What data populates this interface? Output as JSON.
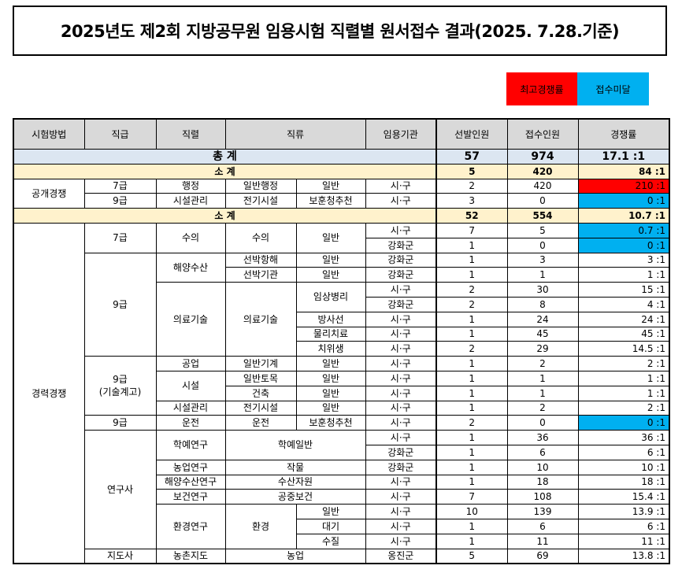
{
  "title": "2025년도 제2회 지방공무원 임용시험 직렬별 원서접수 결과(2025. 7.28.기준)",
  "legend": {
    "highest": "최고경쟁률",
    "under": "접수미달"
  },
  "headers": [
    "시험방법",
    "직급",
    "직렬",
    "직류",
    "임용기관",
    "선발인원",
    "접수인원",
    "경쟁률"
  ],
  "total": {
    "label": "총 계",
    "sel": "57",
    "app": "974",
    "rate": "17.1 :1"
  },
  "open": {
    "method": "공개경쟁",
    "subtotal": {
      "label": "소 계",
      "sel": "5",
      "app": "420",
      "rate": "84 :1"
    },
    "rows": [
      {
        "grade": "7급",
        "series": "행정",
        "c1": "일반행정",
        "c2": "일반",
        "agency": "시·구",
        "sel": "2",
        "app": "420",
        "rate": "210 :1"
      },
      {
        "grade": "9급",
        "series": "시설관리",
        "c1": "전기시설",
        "c2": "보훈청추천",
        "agency": "시·구",
        "sel": "3",
        "app": "0",
        "rate": "0 :1"
      }
    ]
  },
  "career": {
    "method": "경력경쟁",
    "subtotal": {
      "label": "소 계",
      "sel": "52",
      "app": "554",
      "rate": "10.7 :1"
    },
    "labels": {
      "g7": "7급",
      "g9": "9급",
      "g9tech1": "9급",
      "g9tech2": "(기술계고)",
      "g9b": "9급",
      "researcher": "연구사",
      "advisor": "지도사",
      "fishery": "해양수산",
      "medtech": "의료기술",
      "medtech_c": "의료기술",
      "clinical": "임상병리",
      "facility": "시설",
      "edu": "학예연구",
      "edu_c": "학예일반",
      "env": "환경연구",
      "env_c": "환경",
      "vet": "수의",
      "vet_c": "수의"
    },
    "rows": [
      {
        "c2": "일반",
        "agency": "시·구",
        "sel": "7",
        "app": "5",
        "rate": "0.7 :1"
      },
      {
        "agency": "강화군",
        "sel": "1",
        "app": "0",
        "rate": "0 :1"
      },
      {
        "c1": "선박항해",
        "c2": "일반",
        "agency": "강화군",
        "sel": "1",
        "app": "3",
        "rate": "3 :1"
      },
      {
        "c1": "선박기관",
        "c2": "일반",
        "agency": "강화군",
        "sel": "1",
        "app": "1",
        "rate": "1 :1"
      },
      {
        "agency": "시·구",
        "sel": "2",
        "app": "30",
        "rate": "15 :1"
      },
      {
        "agency": "강화군",
        "sel": "2",
        "app": "8",
        "rate": "4 :1"
      },
      {
        "c2": "방사선",
        "agency": "시·구",
        "sel": "1",
        "app": "24",
        "rate": "24 :1"
      },
      {
        "c2": "물리치료",
        "agency": "시·구",
        "sel": "1",
        "app": "45",
        "rate": "45 :1"
      },
      {
        "c2": "치위생",
        "agency": "시·구",
        "sel": "2",
        "app": "29",
        "rate": "14.5 :1"
      },
      {
        "series": "공업",
        "c1": "일반기계",
        "c2": "일반",
        "agency": "시·구",
        "sel": "1",
        "app": "2",
        "rate": "2 :1"
      },
      {
        "c1": "일반토목",
        "c2": "일반",
        "agency": "시·구",
        "sel": "1",
        "app": "1",
        "rate": "1 :1"
      },
      {
        "c1": "건축",
        "c2": "일반",
        "agency": "시·구",
        "sel": "1",
        "app": "1",
        "rate": "1 :1"
      },
      {
        "series": "시설관리",
        "c1": "전기시설",
        "c2": "일반",
        "agency": "시·구",
        "sel": "1",
        "app": "2",
        "rate": "2 :1"
      },
      {
        "series": "운전",
        "c1": "운전",
        "c2": "보훈청추천",
        "agency": "시·구",
        "sel": "2",
        "app": "0",
        "rate": "0 :1"
      },
      {
        "agency": "시·구",
        "sel": "1",
        "app": "36",
        "rate": "36 :1"
      },
      {
        "agency": "강화군",
        "sel": "1",
        "app": "6",
        "rate": "6 :1"
      },
      {
        "series": "농업연구",
        "c": "작물",
        "agency": "강화군",
        "sel": "1",
        "app": "10",
        "rate": "10 :1"
      },
      {
        "series": "해양수산연구",
        "c": "수산자원",
        "agency": "시·구",
        "sel": "1",
        "app": "18",
        "rate": "18 :1"
      },
      {
        "series": "보건연구",
        "c": "공중보건",
        "agency": "시·구",
        "sel": "7",
        "app": "108",
        "rate": "15.4 :1"
      },
      {
        "c2": "일반",
        "agency": "시·구",
        "sel": "10",
        "app": "139",
        "rate": "13.9 :1"
      },
      {
        "c2": "대기",
        "agency": "시·구",
        "sel": "1",
        "app": "6",
        "rate": "6 :1"
      },
      {
        "c2": "수질",
        "agency": "시·구",
        "sel": "1",
        "app": "11",
        "rate": "11 :1"
      },
      {
        "series": "농촌지도",
        "c": "농업",
        "agency": "옹진군",
        "sel": "5",
        "app": "69",
        "rate": "13.8 :1"
      }
    ]
  },
  "colors": {
    "highest": "#ff0000",
    "under": "#00b0f0",
    "header": "#d9d9d9",
    "total": "#dce6f1",
    "subtotal": "#fff2cc"
  }
}
